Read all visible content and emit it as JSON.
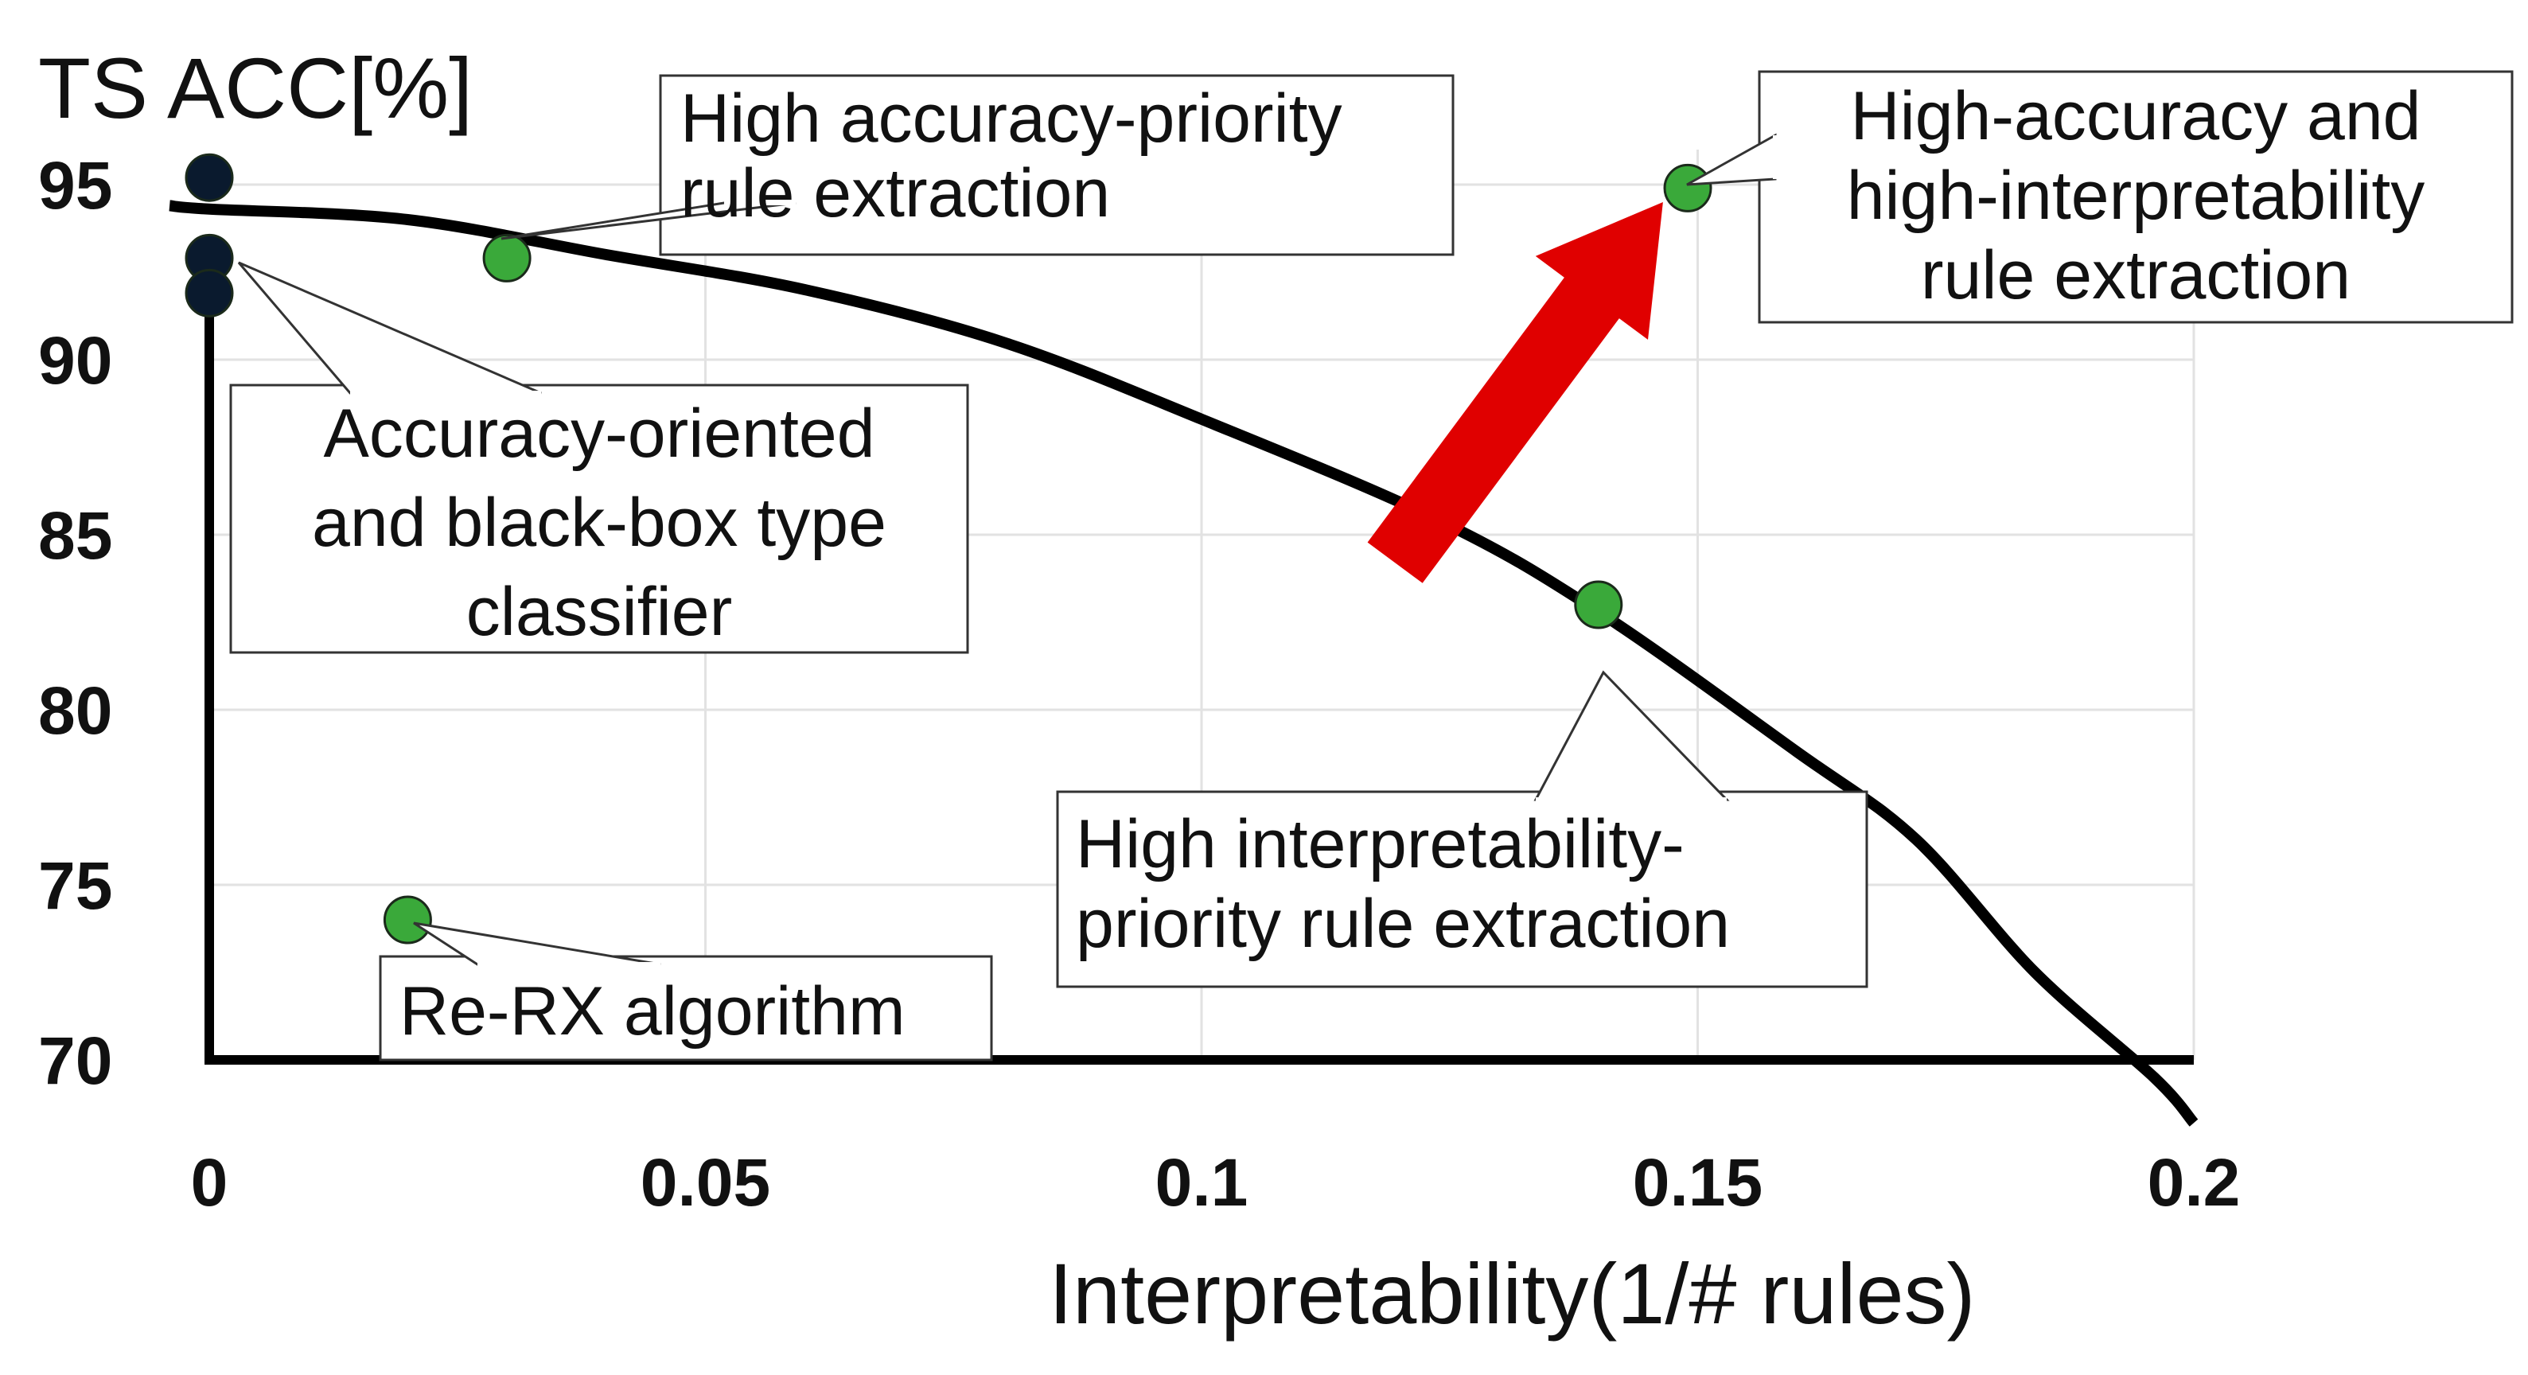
{
  "chart_data": {
    "type": "scatter",
    "title": "",
    "xlabel": "Interpretability(1/# rules)",
    "ylabel": "TS ACC[%]",
    "xlim": [
      0,
      0.2
    ],
    "ylim": [
      70,
      95
    ],
    "x_ticks": [
      0,
      0.05,
      0.1,
      0.15,
      0.2
    ],
    "x_tick_labels": [
      "0",
      "0.05",
      "0.1",
      "0.15",
      "0.2"
    ],
    "y_ticks": [
      70,
      75,
      80,
      85,
      90,
      95
    ],
    "y_tick_labels": [
      "70",
      "75",
      "80",
      "85",
      "90",
      "95"
    ],
    "grid": true,
    "series": [
      {
        "color": "#0a1a2e",
        "points": [
          {
            "x": 0,
            "y": 95.2
          },
          {
            "x": 0,
            "y": 92.9
          },
          {
            "x": 0,
            "y": 91.9
          }
        ]
      },
      {
        "color": "#3aa93a",
        "points": [
          {
            "x": 0.03,
            "y": 92.9
          },
          {
            "x": 0.02,
            "y": 74.0
          },
          {
            "x": 0.14,
            "y": 83.0
          },
          {
            "x": 0.149,
            "y": 94.9
          }
        ]
      }
    ],
    "trend_curve": {
      "color": "#000000",
      "points": [
        [
          -0.004,
          94.4
        ],
        [
          0.0,
          94.3
        ],
        [
          0.02,
          94.0
        ],
        [
          0.04,
          93.0
        ],
        [
          0.06,
          92.0
        ],
        [
          0.08,
          90.5
        ],
        [
          0.1,
          88.3
        ],
        [
          0.124,
          85.4
        ],
        [
          0.14,
          82.8
        ],
        [
          0.16,
          78.8
        ],
        [
          0.172,
          76.3
        ],
        [
          0.184,
          72.5
        ],
        [
          0.196,
          69.5
        ],
        [
          0.2,
          68.2
        ]
      ]
    },
    "arrow": {
      "color": "#e00000",
      "from": [
        0.1195,
        84.2
      ],
      "to": [
        0.1465,
        94.5
      ]
    },
    "annotations": [
      {
        "lines": [
          "High accuracy-priority",
          "rule extraction"
        ]
      },
      {
        "lines": [
          "High-accuracy and",
          "high-interpretability",
          "rule extraction"
        ]
      },
      {
        "lines": [
          "Accuracy-oriented",
          "and black-box type",
          "classifier"
        ]
      },
      {
        "lines": [
          "High interpretability-",
          "priority rule extraction"
        ]
      },
      {
        "lines": [
          "Re-RX algorithm"
        ]
      }
    ]
  }
}
